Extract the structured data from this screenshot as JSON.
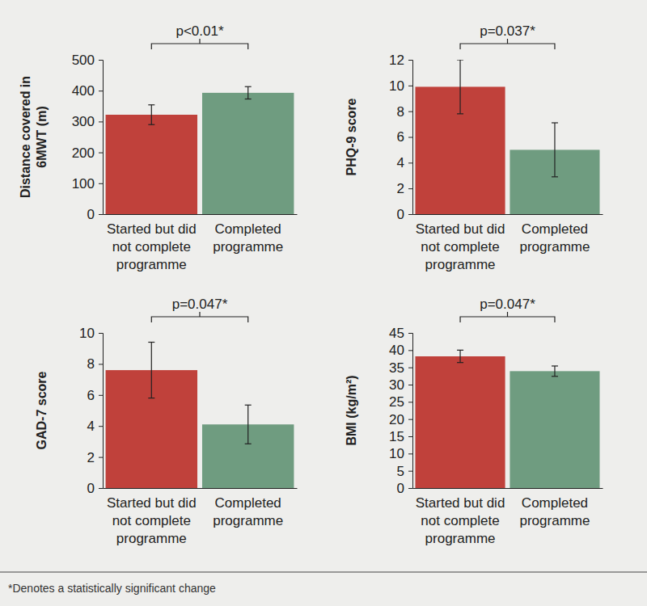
{
  "chart_data": [
    {
      "type": "bar",
      "y_label": "Distance covered in 6MWT (m)",
      "categories": [
        "Started but did not complete programme",
        "Completed programme"
      ],
      "values": [
        322,
        393
      ],
      "errors": [
        32,
        20
      ],
      "colors": [
        "#c0413b",
        "#6f9c80"
      ],
      "ylim": [
        0,
        500
      ],
      "yticks": [
        0,
        100,
        200,
        300,
        400,
        500
      ],
      "annotation": "p<0.01*"
    },
    {
      "type": "bar",
      "y_label": "PHQ-9 score",
      "categories": [
        "Started but did not complete programme",
        "Completed programme"
      ],
      "values": [
        9.9,
        5.0
      ],
      "errors": [
        2.1,
        2.1
      ],
      "colors": [
        "#c0413b",
        "#6f9c80"
      ],
      "ylim": [
        0,
        12
      ],
      "yticks": [
        0,
        2,
        4,
        6,
        8,
        10,
        12
      ],
      "annotation": "p=0.037*"
    },
    {
      "type": "bar",
      "y_label": "GAD-7 score",
      "categories": [
        "Started but did not complete programme",
        "Completed programme"
      ],
      "values": [
        7.6,
        4.1
      ],
      "errors": [
        1.8,
        1.25
      ],
      "colors": [
        "#c0413b",
        "#6f9c80"
      ],
      "ylim": [
        0,
        10
      ],
      "yticks": [
        0,
        2,
        4,
        6,
        8,
        10
      ],
      "annotation": "p=0.047*"
    },
    {
      "type": "bar",
      "y_label": "BMI (kg/m²)",
      "categories": [
        "Started but did not complete programme",
        "Completed programme"
      ],
      "values": [
        38.2,
        33.9
      ],
      "errors": [
        1.8,
        1.5
      ],
      "colors": [
        "#c0413b",
        "#6f9c80"
      ],
      "ylim": [
        0,
        45
      ],
      "yticks": [
        0,
        5,
        10,
        15,
        20,
        25,
        30,
        35,
        40,
        45
      ],
      "annotation": "p=0.047*"
    }
  ],
  "footnote": "*Denotes a statistically significant change"
}
